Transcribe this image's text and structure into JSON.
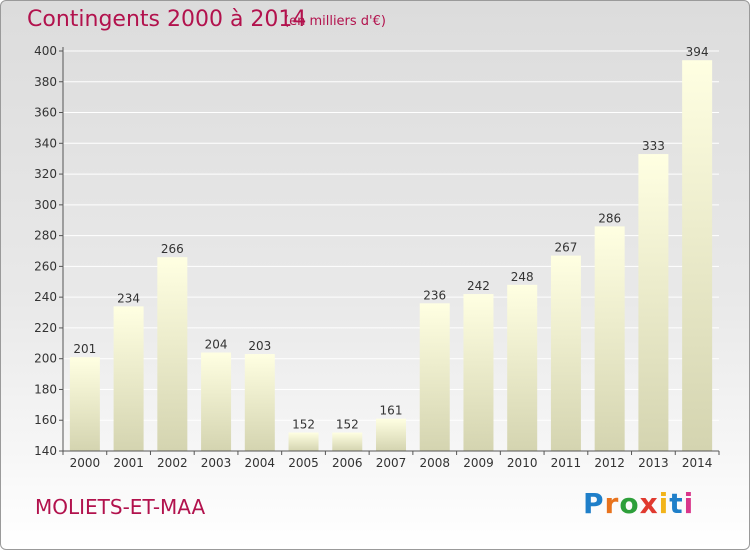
{
  "header": {
    "title": "Contingents 2000 à 2014",
    "subtitle": "(en milliers d'€)"
  },
  "footer": {
    "commune": "MOLIETS-ET-MAA",
    "logo_text": "Proxiti"
  },
  "colors": {
    "title": "#b2124d",
    "bar_top": "#ffffe0",
    "bar_bottom": "#d6d6b2",
    "grid": "#ffffff",
    "axis": "#555555"
  },
  "chart_data": {
    "type": "bar",
    "title": "Contingents 2000 à 2014",
    "subtitle": "(en milliers d'€)",
    "categories": [
      "2000",
      "2001",
      "2002",
      "2003",
      "2004",
      "2005",
      "2006",
      "2007",
      "2008",
      "2009",
      "2010",
      "2011",
      "2012",
      "2013",
      "2014"
    ],
    "values": [
      201,
      234,
      266,
      204,
      203,
      152,
      152,
      161,
      236,
      242,
      248,
      267,
      286,
      333,
      394
    ],
    "ylim": [
      140,
      400
    ],
    "yticks": [
      140,
      160,
      180,
      200,
      220,
      240,
      260,
      280,
      300,
      320,
      340,
      360,
      380,
      400
    ],
    "grid": true,
    "xlabel": "",
    "ylabel": ""
  }
}
